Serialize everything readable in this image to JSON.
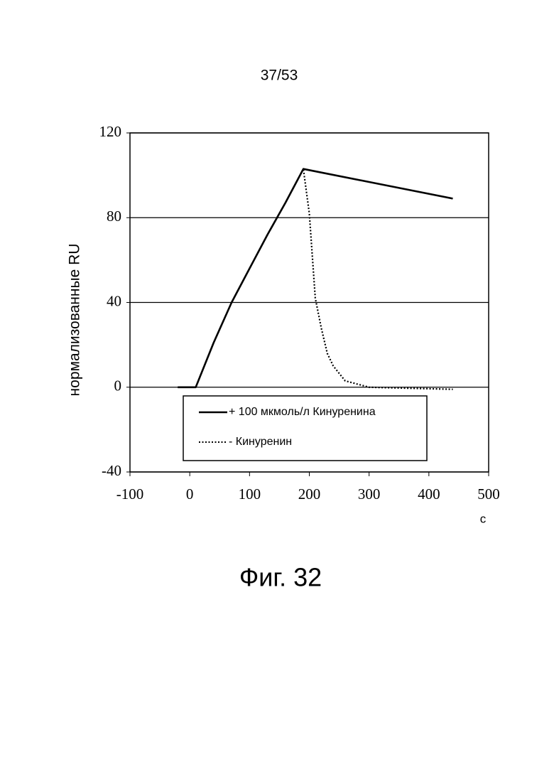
{
  "page_number": "37/53",
  "figure_label": "Фиг. 32",
  "chart_data": {
    "type": "line",
    "y_label": "нормализованные RU",
    "x_label": "с",
    "xlim": [
      -100,
      500
    ],
    "ylim": [
      -40,
      120
    ],
    "xticks": [
      -100,
      0,
      100,
      200,
      300,
      400,
      500
    ],
    "yticks": [
      -40,
      0,
      40,
      80,
      120
    ],
    "grid": true,
    "series": [
      {
        "name": "+ 100 мкмоль/л Кинуренина",
        "color": "#000000",
        "style": "solid",
        "x": [
          -20,
          10,
          40,
          70,
          100,
          130,
          160,
          190,
          440
        ],
        "values": [
          0,
          0,
          21,
          40,
          56,
          72,
          87,
          103,
          89
        ]
      },
      {
        "name": "- Кинуренин",
        "color": "#000000",
        "style": "dotted",
        "x": [
          -20,
          10,
          40,
          70,
          100,
          130,
          160,
          190,
          200,
          210,
          220,
          230,
          240,
          260,
          300,
          440
        ],
        "values": [
          0,
          0,
          21,
          40,
          56,
          72,
          87,
          103,
          82,
          42,
          28,
          16,
          10,
          3,
          0,
          -1
        ]
      }
    ]
  }
}
